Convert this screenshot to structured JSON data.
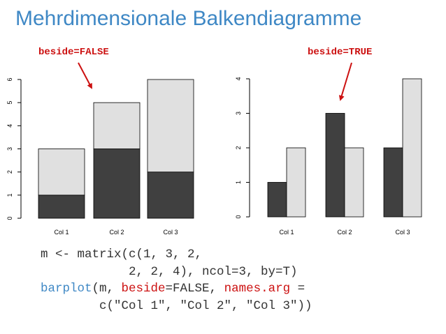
{
  "page": {
    "title": "Mehrdimensionale Balkendiagramme",
    "annotation_left": "beside=FALSE",
    "annotation_right": "beside=TRUE"
  },
  "colors": {
    "title": "#3f88c5",
    "annotation": "#cc1111",
    "dark_bar": "#404040",
    "light_bar": "#e0e0e0",
    "code_text": "#333333",
    "code_function": "#3f88c5",
    "code_argument": "#cc1111"
  },
  "code": {
    "line1": "m <- matrix(c(1, 3, 2,",
    "line2": "            2, 2, 4), ncol=3, by=T)",
    "line3_fn": "barplot",
    "line3_a": "(m, ",
    "line3_arg1": "beside",
    "line3_b": "=FALSE, ",
    "line3_arg2": "names.arg",
    "line3_c": " =",
    "line4": "        c(\"Col 1\", \"Col 2\", \"Col 3\"))"
  },
  "chart_data": [
    {
      "type": "bar",
      "stacked": true,
      "categories": [
        "Col 1",
        "Col 2",
        "Col 3"
      ],
      "series": [
        {
          "values": [
            1,
            3,
            2
          ],
          "color": "#404040"
        },
        {
          "values": [
            2,
            2,
            4
          ],
          "color": "#e0e0e0"
        }
      ],
      "ylim": [
        0,
        6
      ],
      "yticks": [
        "0",
        "1",
        "2",
        "3",
        "4",
        "5",
        "6"
      ],
      "xlabel": "",
      "ylabel": "",
      "title": ""
    },
    {
      "type": "bar",
      "stacked": false,
      "categories": [
        "Col 1",
        "Col 2",
        "Col 3"
      ],
      "series": [
        {
          "values": [
            1,
            3,
            2
          ],
          "color": "#404040"
        },
        {
          "values": [
            2,
            2,
            4
          ],
          "color": "#e0e0e0"
        }
      ],
      "ylim": [
        0,
        4
      ],
      "yticks": [
        "0",
        "1",
        "2",
        "3",
        "4"
      ],
      "xlabel": "",
      "ylabel": "",
      "title": ""
    }
  ]
}
